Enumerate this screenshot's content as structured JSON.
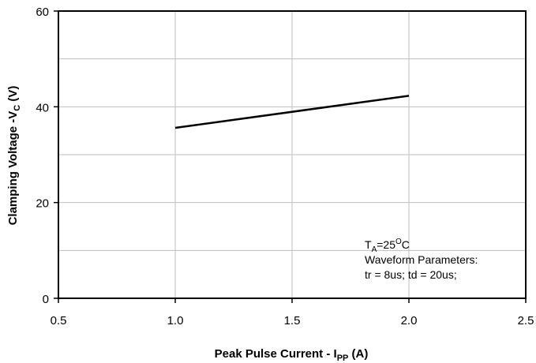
{
  "chart_data": {
    "type": "line",
    "xlabel": {
      "main": "Peak Pulse Current - I",
      "sub": "PP",
      "unit": " (A)"
    },
    "ylabel": {
      "main": "Clamping Voltage -V",
      "sub": "C",
      "unit": " (V)"
    },
    "xlim": [
      0.5,
      2.5
    ],
    "ylim": [
      0,
      60
    ],
    "x_ticks": [
      "0.5",
      "1.0",
      "1.5",
      "2.0",
      "2.5"
    ],
    "y_ticks": [
      "0",
      "20",
      "40",
      "60"
    ],
    "grid": true,
    "series": [
      {
        "x": [
          1.0,
          2.0
        ],
        "y": [
          35.6,
          42.3
        ],
        "color": "#000000"
      }
    ],
    "annotation": {
      "line1": {
        "main": "T",
        "sub": "A",
        "rest": "=25",
        "sup": "O",
        "end": "C"
      },
      "line2": "Waveform Parameters:",
      "line3": "tr = 8us; td = 20us;"
    }
  }
}
